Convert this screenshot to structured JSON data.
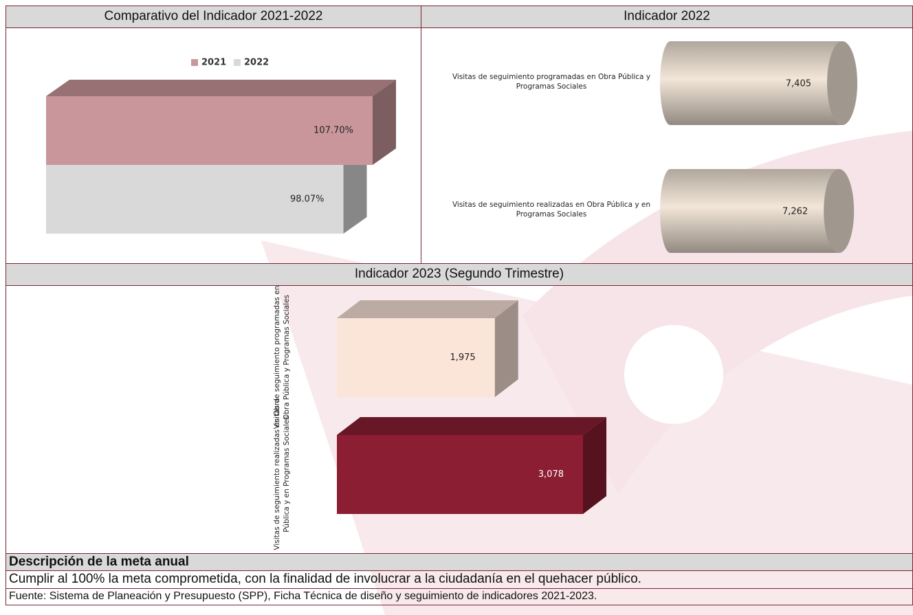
{
  "table": {
    "headers": [
      "Comparativo del Indicador 2021-2022",
      "Indicador 2022",
      "Indicador 2023 (Segundo Trimestre)"
    ],
    "description_title": "Descripción de la meta anual",
    "description": "Cumplir al 100% la meta comprometida, con la finalidad de involucrar a la ciudadanía en el quehacer público.",
    "source": "Fuente: Sistema de Planeación y Presupuesto (SPP), Ficha Técnica de diseño y seguimiento de indicadores 2021-2023."
  },
  "chart_data": [
    {
      "type": "bar3d",
      "legend": "top",
      "series": [
        {
          "name": "2021",
          "color": "#c9979b",
          "values": [
            107.7
          ],
          "value_labels": [
            "107.70%"
          ]
        },
        {
          "name": "2022",
          "color": "#d9d9d9",
          "values": [
            98.07
          ],
          "value_labels": [
            "98.07%"
          ]
        }
      ]
    },
    {
      "type": "cylinder",
      "color": "#f3e6d8",
      "categories": [
        "Visitas de seguimiento programadas en Obra Pública y Programas Sociales",
        "Visitas de seguimiento realizadas en Obra Pública y en Programas Sociales"
      ],
      "values": [
        7405,
        7262
      ],
      "value_labels": [
        "7,405",
        "7,262"
      ]
    },
    {
      "type": "bar3d",
      "colors": [
        "#fbe4d8",
        "#8b1e32"
      ],
      "categories": [
        "Visitas de seguimiento programadas en Obra Pública y Programas Sociales",
        "Visitas de seguimiento realizadas en Obra Pública y en Programas Sociales"
      ],
      "values": [
        1975,
        3078
      ],
      "value_labels": [
        "1,975",
        "3,078"
      ]
    }
  ]
}
